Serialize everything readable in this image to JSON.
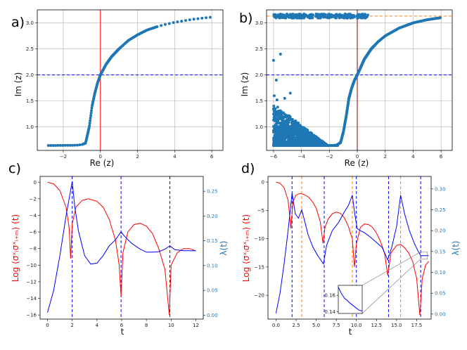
{
  "colors": {
    "scatter": "#1f77b4",
    "red": "#ff0000",
    "blue": "#0000ff",
    "orange": "#ff7f0e",
    "darkred": "#8b0000"
  },
  "chart_data": [
    {
      "panel": "a)",
      "type": "scatter",
      "xlabel": "Re (z)",
      "ylabel": "Im (z)",
      "xlim": [
        -3.4,
        6.6
      ],
      "ylim": [
        0.55,
        3.25
      ],
      "xticks": [
        -2,
        0,
        2,
        4,
        6
      ],
      "yticks": [
        1.0,
        1.5,
        2.0,
        2.5,
        3.0
      ],
      "grid": true,
      "vline": {
        "x": 0,
        "color": "red",
        "style": "solid"
      },
      "hline": {
        "y": 2.0,
        "color": "blue",
        "style": "dashed"
      },
      "curve_points": [
        [
          -2.8,
          0.645
        ],
        [
          -2.5,
          0.645
        ],
        [
          -2.2,
          0.646
        ],
        [
          -1.9,
          0.647
        ],
        [
          -1.6,
          0.648
        ],
        [
          -1.3,
          0.65
        ],
        [
          -1.0,
          0.66
        ],
        [
          -0.8,
          0.69
        ],
        [
          -0.6,
          1.0
        ],
        [
          -0.45,
          1.4
        ],
        [
          -0.3,
          1.65
        ],
        [
          -0.15,
          1.85
        ],
        [
          0.0,
          2.0
        ],
        [
          0.3,
          2.2
        ],
        [
          0.6,
          2.35
        ],
        [
          1.0,
          2.5
        ],
        [
          1.5,
          2.66
        ],
        [
          2.0,
          2.77
        ],
        [
          2.5,
          2.86
        ],
        [
          3.0,
          2.92
        ],
        [
          3.5,
          2.97
        ],
        [
          4.0,
          3.01
        ],
        [
          4.5,
          3.04
        ],
        [
          5.0,
          3.07
        ],
        [
          5.5,
          3.09
        ],
        [
          6.0,
          3.11
        ]
      ]
    },
    {
      "panel": "b)",
      "type": "scatter",
      "xlabel": "Re (z)",
      "ylabel": "Im (z)",
      "xlim": [
        -6.5,
        6.8
      ],
      "ylim": [
        0.55,
        3.25
      ],
      "xticks": [
        -6,
        -4,
        -2,
        0,
        2,
        4,
        6
      ],
      "yticks": [
        1.0,
        1.5,
        2.0,
        2.5,
        3.0
      ],
      "grid": true,
      "vline": {
        "x": 0,
        "color": "darkred",
        "style": "solid"
      },
      "hlines": [
        {
          "y": 2.0,
          "color": "blue",
          "style": "dashed"
        },
        {
          "y": 3.13,
          "color": "orange",
          "style": "dashed"
        }
      ],
      "curve_points": [
        [
          -4.0,
          0.645
        ],
        [
          -3.0,
          0.645
        ],
        [
          -2.0,
          0.646
        ],
        [
          -1.5,
          0.65
        ],
        [
          -1.2,
          0.7
        ],
        [
          -1.0,
          0.9
        ],
        [
          -0.8,
          1.2
        ],
        [
          -0.6,
          1.55
        ],
        [
          -0.4,
          1.75
        ],
        [
          -0.2,
          1.9
        ],
        [
          0.0,
          2.0
        ],
        [
          0.5,
          2.3
        ],
        [
          1.0,
          2.5
        ],
        [
          1.5,
          2.64
        ],
        [
          2.0,
          2.75
        ],
        [
          3.0,
          2.9
        ],
        [
          4.0,
          3.0
        ],
        [
          5.0,
          3.06
        ],
        [
          6.0,
          3.1
        ]
      ],
      "cluster": {
        "x_range": [
          -6.0,
          -2.2
        ],
        "y_range": [
          0.645,
          1.45
        ]
      },
      "top_band": {
        "x_range": [
          -6.0,
          0.8
        ],
        "y": 3.13
      },
      "outliers": [
        [
          -6.0,
          2.28
        ],
        [
          -5.8,
          1.9
        ],
        [
          -5.75,
          1.52
        ],
        [
          -5.5,
          2.4
        ],
        [
          -4.8,
          1.65
        ],
        [
          -5.95,
          1.6
        ],
        [
          -5.2,
          1.55
        ]
      ]
    },
    {
      "panel": "c)",
      "type": "line",
      "xlabel": "t",
      "ylabel": "Log ⟨σˣᵢσˣᵢ₊ₘ⟩ (t)",
      "y2label": "λ(t)",
      "xlim": [
        -0.6,
        12.6
      ],
      "ylim": [
        -16.5,
        0.7
      ],
      "y2lim": [
        -0.008,
        0.28
      ],
      "xticks": [
        0,
        2,
        4,
        6,
        8,
        10,
        12
      ],
      "yticks": [
        0,
        -2,
        -4,
        -6,
        -8,
        -10,
        -12,
        -14,
        -16
      ],
      "y2ticks": [
        0.0,
        0.05,
        0.1,
        0.15,
        0.2,
        0.25
      ],
      "vlines": [
        2.0,
        5.95,
        9.9
      ],
      "series": [
        {
          "name": "log-correlation",
          "color": "red",
          "axis": "left",
          "points": [
            [
              0,
              0
            ],
            [
              0.5,
              -0.2
            ],
            [
              1.0,
              -1.0
            ],
            [
              1.5,
              -3.0
            ],
            [
              1.75,
              -5.5
            ],
            [
              1.87,
              -9.2
            ],
            [
              2.0,
              -5.0
            ],
            [
              2.3,
              -3.0
            ],
            [
              2.8,
              -2.2
            ],
            [
              3.3,
              -2.0
            ],
            [
              4.0,
              -2.3
            ],
            [
              4.5,
              -3.0
            ],
            [
              5.0,
              -4.5
            ],
            [
              5.5,
              -7.0
            ],
            [
              5.8,
              -10.0
            ],
            [
              5.95,
              -13.8
            ],
            [
              6.1,
              -8.5
            ],
            [
              6.5,
              -6.0
            ],
            [
              7.0,
              -5.1
            ],
            [
              7.5,
              -4.95
            ],
            [
              8.0,
              -5.3
            ],
            [
              8.5,
              -6.2
            ],
            [
              9.0,
              -8.0
            ],
            [
              9.5,
              -10.5
            ],
            [
              9.85,
              -16.0
            ],
            [
              10.0,
              -10.0
            ],
            [
              10.5,
              -8.5
            ],
            [
              11.0,
              -8.0
            ],
            [
              11.5,
              -8.0
            ],
            [
              12.0,
              -8.3
            ]
          ]
        },
        {
          "name": "lambda(t)",
          "color": "blue",
          "axis": "right",
          "points": [
            [
              0,
              0.005
            ],
            [
              0.5,
              0.05
            ],
            [
              1.0,
              0.12
            ],
            [
              1.5,
              0.2
            ],
            [
              2.0,
              0.27
            ],
            [
              2.2,
              0.22
            ],
            [
              2.5,
              0.17
            ],
            [
              3.0,
              0.12
            ],
            [
              3.5,
              0.103
            ],
            [
              4.0,
              0.105
            ],
            [
              4.5,
              0.12
            ],
            [
              5.0,
              0.14
            ],
            [
              5.5,
              0.152
            ],
            [
              5.95,
              0.168
            ],
            [
              6.2,
              0.16
            ],
            [
              6.8,
              0.145
            ],
            [
              7.5,
              0.133
            ],
            [
              8.0,
              0.127
            ],
            [
              8.5,
              0.127
            ],
            [
              9.0,
              0.128
            ],
            [
              9.5,
              0.133
            ],
            [
              9.9,
              0.14
            ],
            [
              10.3,
              0.132
            ],
            [
              11.0,
              0.13
            ],
            [
              12.0,
              0.13
            ]
          ]
        }
      ]
    },
    {
      "panel": "d)",
      "type": "line",
      "xlabel": "t",
      "ylabel": "Log ⟨σˣᵢσˣᵢ₊ₘ⟩ (t)",
      "y2label": "λ(t)",
      "xlim": [
        -1.0,
        19.3
      ],
      "ylim": [
        -24.2,
        1.0
      ],
      "y2lim": [
        -0.012,
        0.33
      ],
      "xticks": [
        0.0,
        2.5,
        5.0,
        7.5,
        10.0,
        12.5,
        15.0,
        17.5
      ],
      "yticks": [
        0,
        -5,
        -10,
        -15,
        -20
      ],
      "y2ticks": [
        0.0,
        0.05,
        0.1,
        0.15,
        0.2,
        0.25,
        0.3
      ],
      "blue_vlines": [
        2.0,
        6.0,
        10.0,
        14.0,
        18.0
      ],
      "orange_vlines": [
        3.2,
        9.5,
        15.5
      ],
      "series": [
        {
          "name": "log-correlation",
          "color": "red",
          "axis": "left",
          "points": [
            [
              0,
              0
            ],
            [
              0.5,
              -0.2
            ],
            [
              1.0,
              -1.0
            ],
            [
              1.5,
              -3.2
            ],
            [
              1.85,
              -8.2
            ],
            [
              2.1,
              -3.5
            ],
            [
              2.5,
              -2.3
            ],
            [
              3.0,
              -2.0
            ],
            [
              3.5,
              -2.2
            ],
            [
              4.0,
              -2.6
            ],
            [
              4.5,
              -3.4
            ],
            [
              5.0,
              -4.6
            ],
            [
              5.5,
              -7.0
            ],
            [
              5.85,
              -10.8
            ],
            [
              6.1,
              -8.0
            ],
            [
              6.5,
              -6.5
            ],
            [
              7.0,
              -5.6
            ],
            [
              7.5,
              -5.3
            ],
            [
              8.0,
              -5.5
            ],
            [
              8.5,
              -6.3
            ],
            [
              9.0,
              -7.8
            ],
            [
              9.3,
              -9.2
            ],
            [
              9.5,
              -10.0
            ],
            [
              9.75,
              -15.0
            ],
            [
              10.0,
              -11.0
            ],
            [
              10.5,
              -8.0
            ],
            [
              11.0,
              -7.4
            ],
            [
              11.5,
              -7.5
            ],
            [
              12.0,
              -8.0
            ],
            [
              12.5,
              -9.0
            ],
            [
              13.0,
              -10.5
            ],
            [
              13.5,
              -12.5
            ],
            [
              13.9,
              -16.5
            ],
            [
              14.3,
              -12.5
            ],
            [
              15.0,
              -11.2
            ],
            [
              15.5,
              -11.0
            ],
            [
              16.0,
              -11.6
            ],
            [
              16.5,
              -12.5
            ],
            [
              17.0,
              -14.0
            ],
            [
              17.5,
              -17.0
            ],
            [
              17.9,
              -23.5
            ],
            [
              18.2,
              -17.0
            ],
            [
              18.6,
              -14.7
            ],
            [
              19.0,
              -14.0
            ]
          ]
        },
        {
          "name": "lambda(t)",
          "color": "blue",
          "axis": "right",
          "points": [
            [
              0,
              0.002
            ],
            [
              0.5,
              0.05
            ],
            [
              1.0,
              0.12
            ],
            [
              1.5,
              0.2
            ],
            [
              2.0,
              0.29
            ],
            [
              2.4,
              0.24
            ],
            [
              2.8,
              0.23
            ],
            [
              3.2,
              0.25
            ],
            [
              3.6,
              0.22
            ],
            [
              4.0,
              0.19
            ],
            [
              4.6,
              0.16
            ],
            [
              5.2,
              0.14
            ],
            [
              5.9,
              0.12
            ],
            [
              6.3,
              0.165
            ],
            [
              7.0,
              0.2
            ],
            [
              7.8,
              0.22
            ],
            [
              8.5,
              0.245
            ],
            [
              9.0,
              0.26
            ],
            [
              9.3,
              0.275
            ],
            [
              9.5,
              0.285
            ],
            [
              9.8,
              0.24
            ],
            [
              10.1,
              0.205
            ],
            [
              10.5,
              0.2
            ],
            [
              11.0,
              0.195
            ],
            [
              11.5,
              0.188
            ],
            [
              12.0,
              0.18
            ],
            [
              12.6,
              0.17
            ],
            [
              13.2,
              0.16
            ],
            [
              13.9,
              0.13
            ],
            [
              14.4,
              0.16
            ],
            [
              15.0,
              0.21
            ],
            [
              15.5,
              0.285
            ],
            [
              16.0,
              0.24
            ],
            [
              16.6,
              0.2
            ],
            [
              17.2,
              0.17
            ],
            [
              17.7,
              0.15
            ],
            [
              18.0,
              0.14
            ],
            [
              18.5,
              0.14
            ],
            [
              19.0,
              0.14
            ]
          ]
        }
      ],
      "inset": {
        "xlim": [
          17.6,
          18.35
        ],
        "ylim": [
          0.138,
          0.172
        ],
        "yticks": [
          0.14,
          0.16
        ],
        "points": [
          [
            17.6,
            0.17
          ],
          [
            17.7,
            0.162
          ],
          [
            17.8,
            0.156
          ],
          [
            17.85,
            0.155
          ],
          [
            17.95,
            0.151
          ],
          [
            18.05,
            0.148
          ],
          [
            18.15,
            0.145
          ],
          [
            18.25,
            0.142
          ],
          [
            18.35,
            0.141
          ]
        ]
      }
    }
  ]
}
